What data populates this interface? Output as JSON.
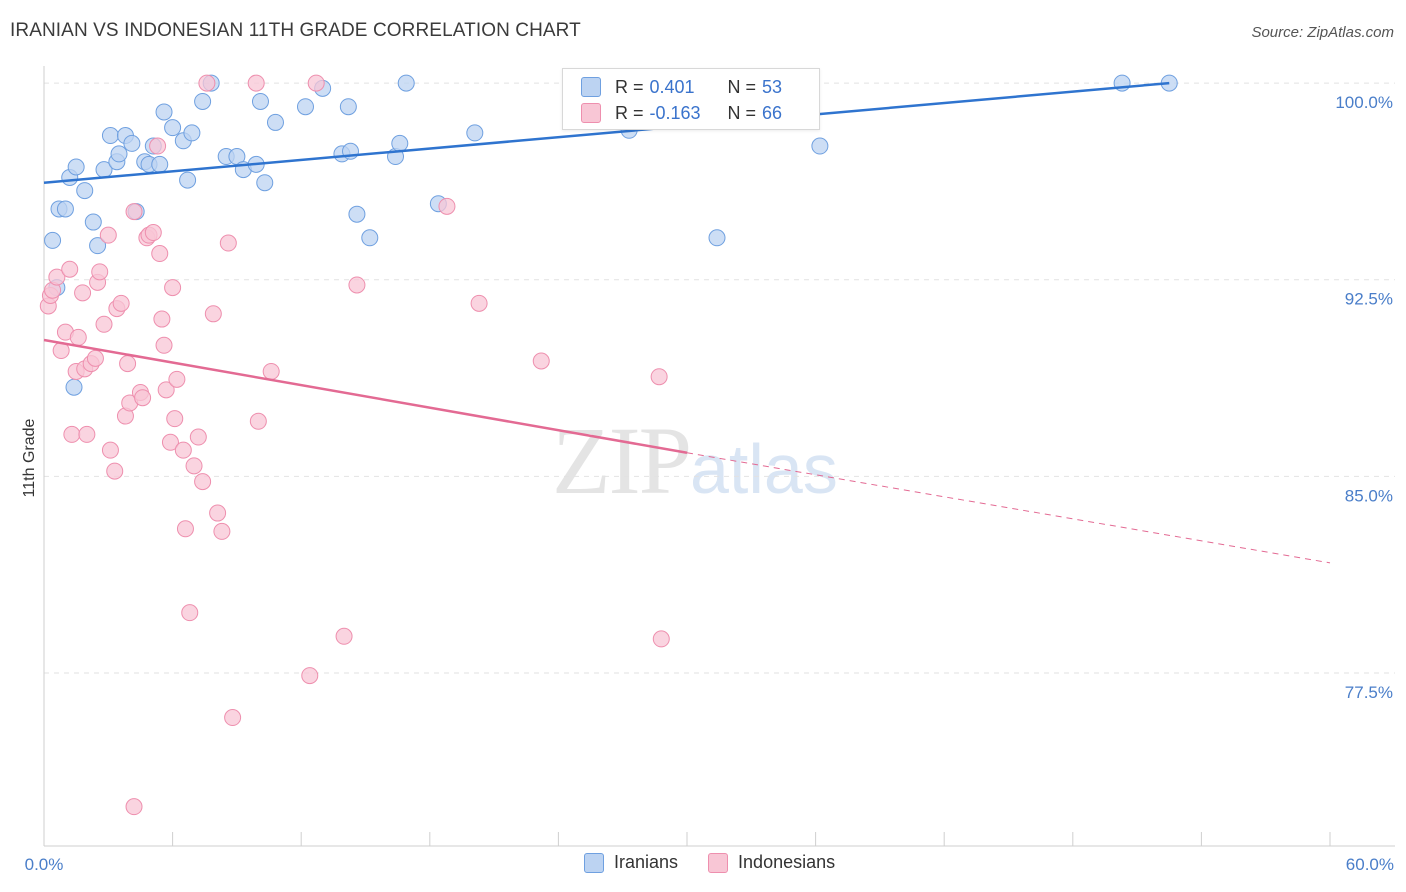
{
  "title": "IRANIAN VS INDONESIAN 11TH GRADE CORRELATION CHART",
  "source": "Source: ZipAtlas.com",
  "colors": {
    "blue": "#6fa0e0",
    "blue_fill": "#bcd3f2",
    "blue_line": "#2f74cf",
    "pink": "#ee8fae",
    "pink_fill": "#f8c6d5",
    "pink_line": "#e36a93",
    "tick": "#4a7ec9"
  },
  "legend": {
    "r1_label": "R = ",
    "r1_value": "0.401",
    "n1_label": "N = ",
    "n1_value": "53",
    "r2_label": "R = ",
    "r2_value": "-0.163",
    "n2_label": "N = ",
    "n2_value": "66"
  },
  "bottom_legend": {
    "series1": "Iranians",
    "series2": "Indonesians"
  },
  "watermark": {
    "zip": "ZIP",
    "atlas": "atlas"
  },
  "chart_data": {
    "type": "scatter",
    "title": "IRANIAN VS INDONESIAN 11TH GRADE CORRELATION CHART",
    "xlabel": "",
    "ylabel": "11th Grade",
    "xlim": [
      0,
      60
    ],
    "ylim": [
      70.9,
      100.5
    ],
    "x_tick_labels": [
      {
        "value": 0,
        "label": "0.0%"
      },
      {
        "value": 60,
        "label": "60.0%"
      }
    ],
    "y_tick_labels": [
      {
        "value": 100,
        "label": "100.0%"
      },
      {
        "value": 92.5,
        "label": "92.5%"
      },
      {
        "value": 85,
        "label": "85.0%"
      },
      {
        "value": 77.5,
        "label": "77.5%"
      }
    ],
    "grid": true,
    "series": [
      {
        "name": "Iranians",
        "trend": {
          "x0": 0,
          "y0": 96.2,
          "x1": 52.5,
          "y1": 100.0
        },
        "points": [
          [
            0.4,
            94.0
          ],
          [
            0.6,
            92.2
          ],
          [
            0.7,
            95.2
          ],
          [
            1.0,
            95.2
          ],
          [
            1.2,
            96.4
          ],
          [
            1.5,
            96.8
          ],
          [
            1.9,
            95.9
          ],
          [
            2.3,
            94.7
          ],
          [
            2.5,
            93.8
          ],
          [
            1.4,
            88.4
          ],
          [
            2.8,
            96.7
          ],
          [
            3.1,
            98.0
          ],
          [
            3.4,
            97.0
          ],
          [
            3.5,
            97.3
          ],
          [
            3.8,
            98.0
          ],
          [
            4.1,
            97.7
          ],
          [
            4.3,
            95.1
          ],
          [
            4.7,
            97.0
          ],
          [
            4.9,
            96.9
          ],
          [
            5.1,
            97.6
          ],
          [
            5.4,
            96.9
          ],
          [
            5.6,
            98.9
          ],
          [
            6.0,
            98.3
          ],
          [
            6.5,
            97.8
          ],
          [
            6.7,
            96.3
          ],
          [
            6.9,
            98.1
          ],
          [
            7.4,
            99.3
          ],
          [
            7.8,
            100.0
          ],
          [
            8.5,
            97.2
          ],
          [
            9.0,
            97.2
          ],
          [
            9.3,
            96.7
          ],
          [
            9.9,
            96.9
          ],
          [
            10.1,
            99.3
          ],
          [
            10.3,
            96.2
          ],
          [
            10.8,
            98.5
          ],
          [
            12.2,
            99.1
          ],
          [
            13.0,
            99.8
          ],
          [
            13.9,
            97.3
          ],
          [
            14.2,
            99.1
          ],
          [
            14.3,
            97.4
          ],
          [
            14.6,
            95.0
          ],
          [
            15.2,
            94.1
          ],
          [
            16.4,
            97.2
          ],
          [
            16.6,
            97.7
          ],
          [
            16.9,
            100.0
          ],
          [
            18.4,
            95.4
          ],
          [
            20.1,
            98.1
          ],
          [
            27.3,
            98.2
          ],
          [
            31.4,
            94.1
          ],
          [
            35.8,
            100.0
          ],
          [
            36.2,
            97.6
          ],
          [
            50.3,
            100.0
          ],
          [
            52.5,
            100.0
          ]
        ]
      },
      {
        "name": "Indonesians",
        "trend": {
          "x0": 0,
          "y0": 90.2,
          "x1": 30.0,
          "y1": 85.9
        },
        "trend_dashed": {
          "x0": 30.0,
          "y0": 85.9,
          "x1": 60.0,
          "y1": 81.7
        },
        "points": [
          [
            0.2,
            91.5
          ],
          [
            0.3,
            91.9
          ],
          [
            0.4,
            92.1
          ],
          [
            0.6,
            92.6
          ],
          [
            0.8,
            89.8
          ],
          [
            1.0,
            90.5
          ],
          [
            1.2,
            92.9
          ],
          [
            1.3,
            86.6
          ],
          [
            1.5,
            89.0
          ],
          [
            1.6,
            90.3
          ],
          [
            1.8,
            92.0
          ],
          [
            1.9,
            89.1
          ],
          [
            2.0,
            86.6
          ],
          [
            2.2,
            89.3
          ],
          [
            2.4,
            89.5
          ],
          [
            2.5,
            92.4
          ],
          [
            2.6,
            92.8
          ],
          [
            2.8,
            90.8
          ],
          [
            3.0,
            94.2
          ],
          [
            3.1,
            86.0
          ],
          [
            3.3,
            85.2
          ],
          [
            3.4,
            91.4
          ],
          [
            3.6,
            91.6
          ],
          [
            3.8,
            87.3
          ],
          [
            3.9,
            89.3
          ],
          [
            4.0,
            87.8
          ],
          [
            4.2,
            95.1
          ],
          [
            4.5,
            88.2
          ],
          [
            4.6,
            88.0
          ],
          [
            4.8,
            94.1
          ],
          [
            4.9,
            94.2
          ],
          [
            5.1,
            94.3
          ],
          [
            5.3,
            97.6
          ],
          [
            5.4,
            93.5
          ],
          [
            5.5,
            91.0
          ],
          [
            5.6,
            90.0
          ],
          [
            5.7,
            88.3
          ],
          [
            5.9,
            86.3
          ],
          [
            6.0,
            92.2
          ],
          [
            6.1,
            87.2
          ],
          [
            6.2,
            88.7
          ],
          [
            6.5,
            86.0
          ],
          [
            6.6,
            83.0
          ],
          [
            6.8,
            79.8
          ],
          [
            7.0,
            85.4
          ],
          [
            7.2,
            86.5
          ],
          [
            7.4,
            84.8
          ],
          [
            7.6,
            100.0
          ],
          [
            7.9,
            91.2
          ],
          [
            8.1,
            83.6
          ],
          [
            8.3,
            82.9
          ],
          [
            8.6,
            93.9
          ],
          [
            8.8,
            75.8
          ],
          [
            9.9,
            100.0
          ],
          [
            10.0,
            87.1
          ],
          [
            10.6,
            89.0
          ],
          [
            12.4,
            77.4
          ],
          [
            12.7,
            100.0
          ],
          [
            14.0,
            78.9
          ],
          [
            14.6,
            92.3
          ],
          [
            18.8,
            95.3
          ],
          [
            20.3,
            91.6
          ],
          [
            23.2,
            89.4
          ],
          [
            28.7,
            88.8
          ],
          [
            28.8,
            78.8
          ],
          [
            4.2,
            72.4
          ]
        ]
      }
    ]
  }
}
